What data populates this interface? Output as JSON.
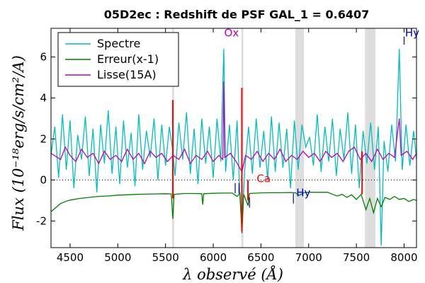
{
  "chart_data": {
    "type": "line",
    "title": "05D2ec : Redshift de PSF GAL_1 = 0.6407",
    "xlabel": "λ observé (Å)",
    "ylabel": "Flux (10⁻¹⁸erg/s/cm²/A)",
    "xlim": [
      4300,
      8130
    ],
    "ylim": [
      -3.3,
      7.4
    ],
    "xticks": [
      4500,
      5000,
      5500,
      6000,
      6500,
      7000,
      7500,
      8000
    ],
    "yticks": [
      -2,
      0,
      2,
      4,
      6
    ],
    "ytick_labels": [
      "-2",
      "0",
      "2",
      "4",
      "6"
    ],
    "grid": false,
    "zero_line": 0,
    "legend": {
      "position": "top-left",
      "entries": [
        {
          "label": "Spectre",
          "color": "#00bfbf"
        },
        {
          "label": "Erreur(x-1)",
          "color": "#008000"
        },
        {
          "label": "Lisse(15A)",
          "color": "#bf00bf"
        }
      ]
    },
    "shaded_bands": [
      {
        "x": [
          5570,
          5590
        ]
      },
      {
        "x": [
          6295,
          6315
        ]
      },
      {
        "x": [
          6860,
          6950
        ]
      },
      {
        "x": [
          7590,
          7700
        ]
      }
    ],
    "sky_lines_red": [
      {
        "x": 5577,
        "y": [
          -0.9,
          3.9
        ]
      },
      {
        "x": 6300,
        "y": [
          -2.5,
          4.5
        ]
      },
      {
        "x": 6364,
        "y": [
          -1.0,
          0.0
        ]
      },
      {
        "x": 7560,
        "y": [
          -0.7,
          1.4
        ]
      }
    ],
    "line_markers": [
      {
        "label": "Ox",
        "x": 6115,
        "color": "#bf00bf",
        "label_y": 7.0
      },
      {
        "label": "Ca",
        "x": 6455,
        "color": "#ff0000",
        "label_y": -0.1
      },
      {
        "label": "Hy",
        "x": 6870,
        "color": "#0000cc",
        "label_y": -0.8
      },
      {
        "label": "Hy",
        "x": 8010,
        "color": "#0000cc",
        "label_y": 7.0
      }
    ],
    "ticks_blue": [
      {
        "x": 6230,
        "y": [
          -0.65,
          -0.15
        ]
      },
      {
        "x": 6270,
        "y": [
          -0.65,
          -0.15
        ]
      },
      {
        "x": 6380,
        "y": [
          -1.35,
          -0.85
        ]
      },
      {
        "x": 6840,
        "y": [
          -1.15,
          -0.65
        ]
      },
      {
        "x": 8000,
        "y": [
          6.6,
          7.0
        ]
      }
    ],
    "series": [
      {
        "name": "Spectre",
        "color": "#00bfbf",
        "points": [
          [
            4300,
            1.2
          ],
          [
            4340,
            2.6
          ],
          [
            4380,
            0.1
          ],
          [
            4420,
            3.2
          ],
          [
            4460,
            0.5
          ],
          [
            4500,
            2.9
          ],
          [
            4540,
            -0.4
          ],
          [
            4580,
            2.2
          ],
          [
            4620,
            1.0
          ],
          [
            4660,
            3.1
          ],
          [
            4700,
            0.2
          ],
          [
            4740,
            2.5
          ],
          [
            4780,
            -0.6
          ],
          [
            4820,
            2.7
          ],
          [
            4860,
            0.8
          ],
          [
            4900,
            3.4
          ],
          [
            4940,
            0.3
          ],
          [
            4980,
            2.6
          ],
          [
            5020,
            -0.2
          ],
          [
            5060,
            2.9
          ],
          [
            5100,
            0.6
          ],
          [
            5140,
            2.3
          ],
          [
            5180,
            -0.3
          ],
          [
            5220,
            3.2
          ],
          [
            5260,
            0.5
          ],
          [
            5300,
            2.4
          ],
          [
            5340,
            1.1
          ],
          [
            5380,
            3.0
          ],
          [
            5420,
            0.0
          ],
          [
            5460,
            2.7
          ],
          [
            5500,
            0.7
          ],
          [
            5540,
            2.6
          ],
          [
            5577,
            1.4
          ],
          [
            5600,
            0.2
          ],
          [
            5640,
            2.8
          ],
          [
            5680,
            1.0
          ],
          [
            5720,
            3.3
          ],
          [
            5760,
            0.3
          ],
          [
            5800,
            2.5
          ],
          [
            5840,
            -0.2
          ],
          [
            5880,
            3.0
          ],
          [
            5920,
            0.8
          ],
          [
            5960,
            2.6
          ],
          [
            6000,
            0.1
          ],
          [
            6040,
            3.0
          ],
          [
            6080,
            0.9
          ],
          [
            6110,
            6.4
          ],
          [
            6130,
            0.4
          ],
          [
            6170,
            2.7
          ],
          [
            6210,
            0.0
          ],
          [
            6250,
            2.9
          ],
          [
            6280,
            -0.9
          ],
          [
            6300,
            -2.2
          ],
          [
            6330,
            0.5
          ],
          [
            6370,
            2.6
          ],
          [
            6410,
            0.3
          ],
          [
            6450,
            3.0
          ],
          [
            6490,
            0.6
          ],
          [
            6530,
            2.4
          ],
          [
            6570,
            0.0
          ],
          [
            6610,
            3.1
          ],
          [
            6650,
            0.4
          ],
          [
            6690,
            2.8
          ],
          [
            6730,
            0.6
          ],
          [
            6770,
            2.5
          ],
          [
            6810,
            -0.4
          ],
          [
            6850,
            2.9
          ],
          [
            6890,
            0.5
          ],
          [
            6930,
            2.7
          ],
          [
            6970,
            1.6
          ],
          [
            7010,
            2.1
          ],
          [
            7050,
            0.7
          ],
          [
            7090,
            3.2
          ],
          [
            7130,
            0.4
          ],
          [
            7170,
            2.6
          ],
          [
            7210,
            0.9
          ],
          [
            7250,
            3.0
          ],
          [
            7290,
            0.2
          ],
          [
            7330,
            2.5
          ],
          [
            7370,
            1.0
          ],
          [
            7410,
            3.3
          ],
          [
            7450,
            0.3
          ],
          [
            7490,
            2.7
          ],
          [
            7530,
            -0.4
          ],
          [
            7570,
            2.4
          ],
          [
            7610,
            0.8
          ],
          [
            7650,
            2.8
          ],
          [
            7690,
            0.5
          ],
          [
            7730,
            2.6
          ],
          [
            7760,
            -3.2
          ],
          [
            7790,
            1.9
          ],
          [
            7830,
            0.4
          ],
          [
            7870,
            2.7
          ],
          [
            7910,
            0.9
          ],
          [
            7950,
            6.4
          ],
          [
            7980,
            0.5
          ],
          [
            8020,
            2.7
          ],
          [
            8060,
            0.7
          ],
          [
            8100,
            2.4
          ],
          [
            8130,
            1.0
          ]
        ]
      },
      {
        "name": "Erreur(x-1)",
        "color": "#008000",
        "points": [
          [
            4300,
            -1.55
          ],
          [
            4350,
            -1.35
          ],
          [
            4400,
            -1.15
          ],
          [
            4450,
            -1.05
          ],
          [
            4500,
            -0.98
          ],
          [
            4600,
            -0.9
          ],
          [
            4700,
            -0.85
          ],
          [
            4800,
            -0.8
          ],
          [
            4900,
            -0.78
          ],
          [
            5000,
            -0.74
          ],
          [
            5100,
            -0.72
          ],
          [
            5200,
            -0.7
          ],
          [
            5300,
            -0.69
          ],
          [
            5400,
            -0.68
          ],
          [
            5500,
            -0.67
          ],
          [
            5560,
            -0.68
          ],
          [
            5577,
            -1.9
          ],
          [
            5590,
            -0.7
          ],
          [
            5700,
            -0.66
          ],
          [
            5800,
            -0.66
          ],
          [
            5880,
            -0.67
          ],
          [
            5890,
            -1.2
          ],
          [
            5900,
            -0.67
          ],
          [
            6000,
            -0.65
          ],
          [
            6100,
            -0.64
          ],
          [
            6200,
            -0.64
          ],
          [
            6250,
            -0.8
          ],
          [
            6280,
            -0.65
          ],
          [
            6300,
            -2.6
          ],
          [
            6320,
            -0.7
          ],
          [
            6364,
            -1.25
          ],
          [
            6380,
            -0.66
          ],
          [
            6500,
            -0.63
          ],
          [
            6600,
            -0.62
          ],
          [
            6700,
            -0.62
          ],
          [
            6800,
            -0.61
          ],
          [
            6860,
            -0.62
          ],
          [
            6900,
            -0.75
          ],
          [
            6950,
            -0.62
          ],
          [
            7000,
            -0.6
          ],
          [
            7100,
            -0.6
          ],
          [
            7200,
            -0.6
          ],
          [
            7250,
            -0.7
          ],
          [
            7300,
            -0.78
          ],
          [
            7350,
            -0.7
          ],
          [
            7400,
            -0.85
          ],
          [
            7450,
            -0.72
          ],
          [
            7500,
            -0.95
          ],
          [
            7550,
            -0.7
          ],
          [
            7600,
            -1.45
          ],
          [
            7640,
            -0.9
          ],
          [
            7680,
            -1.6
          ],
          [
            7720,
            -0.9
          ],
          [
            7760,
            -1.3
          ],
          [
            7800,
            -0.85
          ],
          [
            7850,
            -0.95
          ],
          [
            7900,
            -0.8
          ],
          [
            7950,
            -0.95
          ],
          [
            8000,
            -0.9
          ],
          [
            8050,
            -1.05
          ],
          [
            8100,
            -0.95
          ],
          [
            8130,
            -1.0
          ]
        ]
      },
      {
        "name": "Lisse(15A)",
        "color": "#bf00bf",
        "points": [
          [
            4300,
            1.3
          ],
          [
            4400,
            1.0
          ],
          [
            4450,
            1.6
          ],
          [
            4500,
            1.2
          ],
          [
            4560,
            0.9
          ],
          [
            4620,
            1.5
          ],
          [
            4680,
            1.1
          ],
          [
            4740,
            1.3
          ],
          [
            4800,
            0.8
          ],
          [
            4860,
            1.4
          ],
          [
            4920,
            1.0
          ],
          [
            4980,
            1.2
          ],
          [
            5040,
            0.9
          ],
          [
            5100,
            1.5
          ],
          [
            5160,
            1.0
          ],
          [
            5220,
            1.3
          ],
          [
            5280,
            0.8
          ],
          [
            5340,
            1.4
          ],
          [
            5400,
            1.1
          ],
          [
            5460,
            1.3
          ],
          [
            5520,
            0.9
          ],
          [
            5580,
            1.2
          ],
          [
            5640,
            1.0
          ],
          [
            5700,
            1.5
          ],
          [
            5760,
            0.8
          ],
          [
            5820,
            1.2
          ],
          [
            5880,
            1.0
          ],
          [
            5940,
            1.4
          ],
          [
            6000,
            0.9
          ],
          [
            6060,
            1.2
          ],
          [
            6100,
            1.0
          ],
          [
            6110,
            4.8
          ],
          [
            6120,
            1.1
          ],
          [
            6180,
            1.3
          ],
          [
            6240,
            0.9
          ],
          [
            6300,
            0.4
          ],
          [
            6340,
            1.2
          ],
          [
            6400,
            1.0
          ],
          [
            6460,
            1.4
          ],
          [
            6520,
            0.9
          ],
          [
            6580,
            1.3
          ],
          [
            6640,
            1.0
          ],
          [
            6700,
            1.5
          ],
          [
            6760,
            0.9
          ],
          [
            6820,
            1.2
          ],
          [
            6880,
            1.0
          ],
          [
            6940,
            1.4
          ],
          [
            7000,
            1.1
          ],
          [
            7060,
            1.3
          ],
          [
            7120,
            0.9
          ],
          [
            7180,
            1.4
          ],
          [
            7240,
            1.1
          ],
          [
            7300,
            1.3
          ],
          [
            7360,
            0.9
          ],
          [
            7420,
            1.4
          ],
          [
            7480,
            1.6
          ],
          [
            7540,
            1.0
          ],
          [
            7600,
            1.3
          ],
          [
            7660,
            0.9
          ],
          [
            7720,
            1.5
          ],
          [
            7780,
            1.0
          ],
          [
            7840,
            1.3
          ],
          [
            7900,
            1.1
          ],
          [
            7950,
            3.0
          ],
          [
            7970,
            1.2
          ],
          [
            8030,
            1.4
          ],
          [
            8090,
            1.0
          ],
          [
            8130,
            1.3
          ]
        ]
      }
    ]
  }
}
